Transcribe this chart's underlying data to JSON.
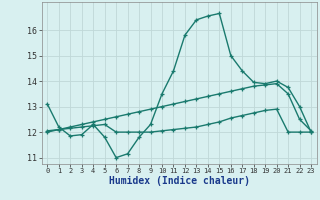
{
  "xlabel": "Humidex (Indice chaleur)",
  "bg_color": "#d8f0f0",
  "grid_color": "#c0d8d8",
  "line_color": "#1a7a6e",
  "xlim": [
    -0.5,
    23.5
  ],
  "ylim": [
    10.75,
    17.1
  ],
  "yticks": [
    11,
    12,
    13,
    14,
    15,
    16
  ],
  "xticks": [
    0,
    1,
    2,
    3,
    4,
    5,
    6,
    7,
    8,
    9,
    10,
    11,
    12,
    13,
    14,
    15,
    16,
    17,
    18,
    19,
    20,
    21,
    22,
    23
  ],
  "curve1_x": [
    0,
    1,
    2,
    3,
    4,
    5,
    6,
    7,
    8,
    9,
    10,
    11,
    12,
    13,
    14,
    15,
    16,
    17,
    18,
    19,
    20,
    21,
    22,
    23
  ],
  "curve1_y": [
    13.1,
    12.2,
    11.85,
    11.9,
    12.3,
    11.8,
    11.0,
    11.15,
    11.8,
    12.3,
    13.5,
    14.4,
    15.8,
    16.4,
    16.55,
    16.65,
    15.0,
    14.4,
    13.95,
    13.9,
    14.0,
    13.75,
    13.0,
    12.0
  ],
  "curve2_x": [
    0,
    1,
    2,
    3,
    4,
    5,
    6,
    7,
    8,
    9,
    10,
    11,
    12,
    13,
    14,
    15,
    16,
    17,
    18,
    19,
    20,
    21,
    22,
    23
  ],
  "curve2_y": [
    12.05,
    12.1,
    12.15,
    12.2,
    12.25,
    12.3,
    12.0,
    12.0,
    12.0,
    12.0,
    12.05,
    12.1,
    12.15,
    12.2,
    12.3,
    12.4,
    12.55,
    12.65,
    12.75,
    12.85,
    12.9,
    12.0,
    12.0,
    12.0
  ],
  "curve3_x": [
    0,
    1,
    2,
    3,
    4,
    5,
    6,
    7,
    8,
    9,
    10,
    11,
    12,
    13,
    14,
    15,
    16,
    17,
    18,
    19,
    20,
    21,
    22,
    23
  ],
  "curve3_y": [
    12.0,
    12.1,
    12.2,
    12.3,
    12.4,
    12.5,
    12.6,
    12.7,
    12.8,
    12.9,
    13.0,
    13.1,
    13.2,
    13.3,
    13.4,
    13.5,
    13.6,
    13.7,
    13.8,
    13.85,
    13.9,
    13.5,
    12.5,
    12.05
  ]
}
